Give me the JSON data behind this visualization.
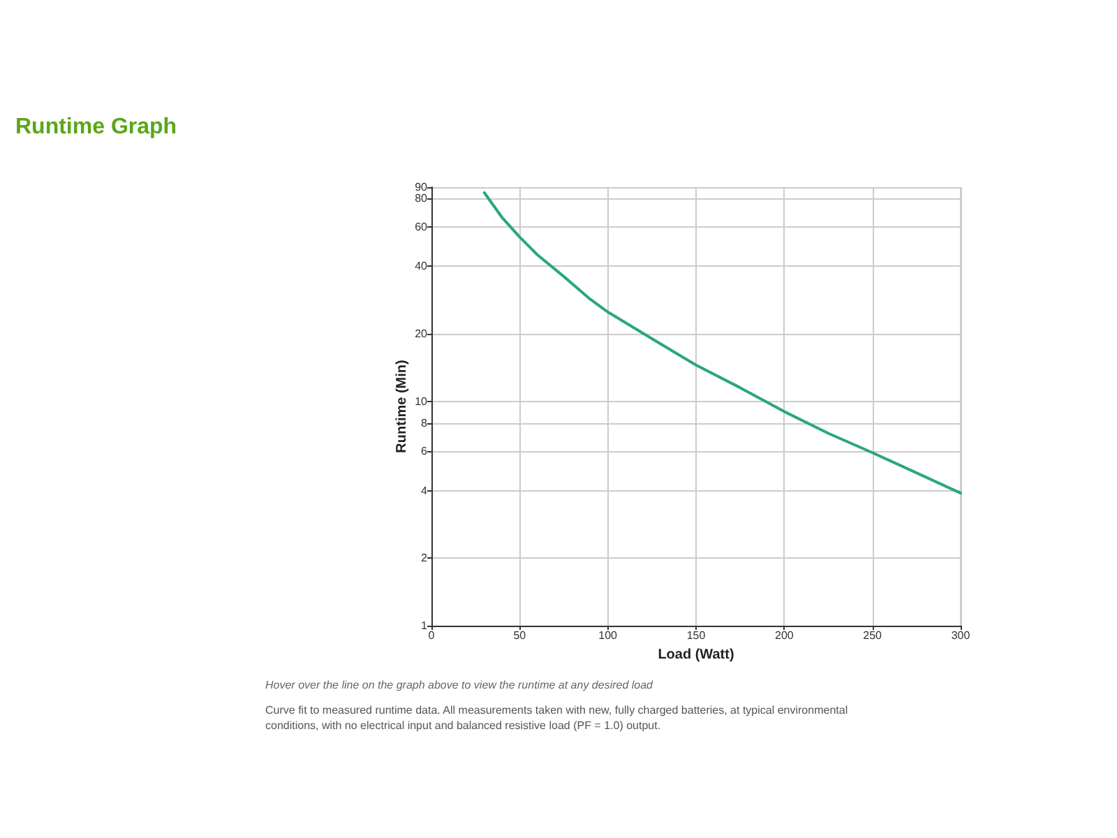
{
  "chart_data": {
    "type": "line",
    "title": "Runtime Graph",
    "xlabel": "Load (Watt)",
    "ylabel": "Runtime (Min)",
    "x": [
      30,
      40,
      50,
      60,
      75,
      90,
      100,
      125,
      150,
      175,
      200,
      225,
      250,
      275,
      300
    ],
    "series": [
      {
        "color": "#2aa876",
        "values": [
          85,
          66,
          54,
          45,
          36,
          28.5,
          25,
          19,
          14.5,
          11.5,
          9,
          7.2,
          5.9,
          4.8,
          3.9
        ]
      }
    ],
    "xlim": [
      0,
      300
    ],
    "xticks": [
      0,
      50,
      100,
      150,
      200,
      250,
      300
    ],
    "ylim": [
      1,
      90
    ],
    "yticks": [
      1,
      2,
      4,
      6,
      8,
      10,
      20,
      40,
      60,
      80,
      90
    ],
    "log": "y",
    "grid": true,
    "marker": "none",
    "line_style": "solid",
    "annotations": [
      "Hover over the line on the graph above to view the runtime at any desired load",
      "Curve fit to measured runtime data. All measurements taken with new, fully charged batteries, at typical environmental conditions, with no electrical input and balanced resistive load (PF = 1.0) output."
    ]
  }
}
